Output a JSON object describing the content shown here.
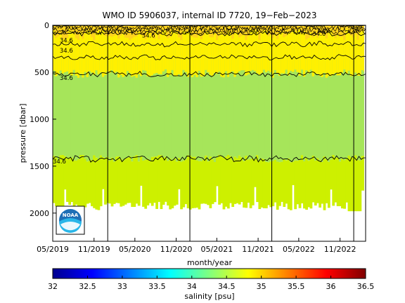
{
  "chart_data": {
    "type": "heatmap",
    "title": "WMO ID 5906037, internal ID 7720, 19−Feb−2023",
    "xlabel": "month/year",
    "ylabel": "pressure [dbar]",
    "x_ticks": [
      "05/2019",
      "11/2019",
      "05/2020",
      "11/2020",
      "05/2021",
      "11/2021",
      "05/2022",
      "11/2022"
    ],
    "y_ticks": [
      "0",
      "500",
      "1000",
      "1500",
      "2000"
    ],
    "ylim": [
      2300,
      0
    ],
    "y_reversed": true,
    "year_boundaries": [
      "2020-01-01",
      "2021-01-01",
      "2022-01-01",
      "2023-01-01"
    ],
    "profile_count": 140,
    "contour_lines": [
      {
        "label": "34.6",
        "mean_pressure": 0
      },
      {
        "label": "34.6",
        "mean_pressure": 85
      },
      {
        "label": "34.6",
        "mean_pressure": 200
      },
      {
        "label": "34.6",
        "mean_pressure": 340
      },
      {
        "label": "34.6",
        "mean_pressure": 520
      },
      {
        "label": "34.6",
        "mean_pressure": 1420
      }
    ],
    "contour_labels": [
      {
        "text": "34.6",
        "near_date": "2020-06",
        "pressure": 110
      },
      {
        "text": "34.6",
        "near_date": "2019-06",
        "pressure": 160
      },
      {
        "text": "34.6",
        "near_date": "2019-06",
        "pressure": 270
      },
      {
        "text": "34.6",
        "near_date": "2019-06",
        "pressure": 560
      },
      {
        "text": "34.6",
        "near_date": "2022-07",
        "pressure": 90
      },
      {
        "text": "34.6",
        "near_date": "2019-05",
        "pressure": 1450
      }
    ],
    "colorbar": {
      "label": "salinity [psu]",
      "ticks": [
        "32",
        "32.5",
        "33",
        "33.5",
        "34",
        "34.5",
        "35",
        "35.5",
        "36",
        "36.5"
      ],
      "range": [
        32,
        36.5
      ],
      "colormap": "jet"
    },
    "colors": {
      "surface_layer": "#ffd21e",
      "upper_layer": "#fff000",
      "mid_layer": "#a6e55a",
      "deep_layer": "#cdf000",
      "no_data": "#ffffff"
    },
    "logo": "NOAA"
  }
}
